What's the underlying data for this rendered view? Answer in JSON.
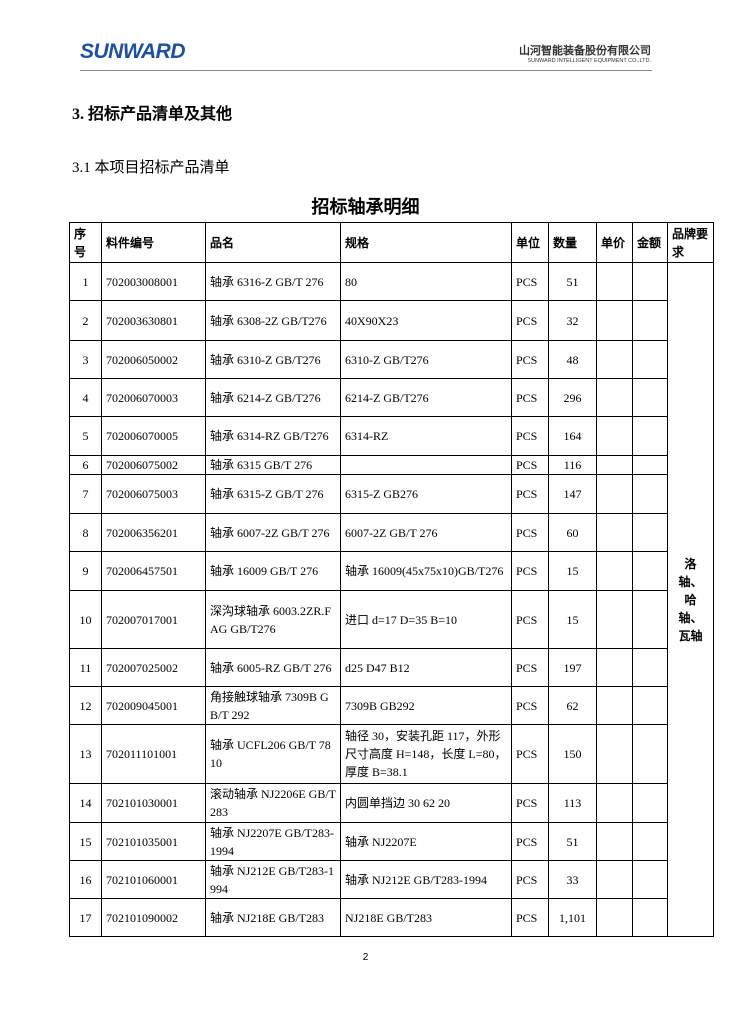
{
  "header": {
    "logo": "SUNWARD",
    "company_cn": "山河智能装备股份有限公司",
    "company_en": "SUNWARD INTELLIGENT EQUIPMENT CO.,LTD."
  },
  "section_heading": "3.  招标产品清单及其他",
  "subsection_heading": "3.1  本项目招标产品清单",
  "table": {
    "title": "招标轴承明细",
    "columns": [
      "序号",
      "料件编号",
      "品名",
      "规格",
      "单位",
      "数量",
      "单价",
      "金额",
      "品牌要求"
    ],
    "brand": [
      "洛",
      "轴、",
      "哈",
      "轴、",
      "瓦轴"
    ],
    "rows": [
      {
        "no": "1",
        "code": "702003008001",
        "name": "轴承 6316-Z GB/T 276",
        "spec": "80",
        "unit": "PCS",
        "qty": "51"
      },
      {
        "no": "2",
        "code": "702003630801",
        "name": "轴承 6308-2Z GB/T276",
        "spec": "40X90X23",
        "unit": "PCS",
        "qty": "32"
      },
      {
        "no": "3",
        "code": "702006050002",
        "name": "轴承 6310-Z GB/T276",
        "spec": "6310-Z GB/T276",
        "unit": "PCS",
        "qty": "48"
      },
      {
        "no": "4",
        "code": "702006070003",
        "name": "轴承 6214-Z GB/T276",
        "spec": "6214-Z GB/T276",
        "unit": "PCS",
        "qty": "296"
      },
      {
        "no": "5",
        "code": "702006070005",
        "name": "轴承 6314-RZ GB/T276",
        "spec": "6314-RZ",
        "unit": "PCS",
        "qty": "164"
      },
      {
        "no": "6",
        "code": "702006075002",
        "name": "轴承 6315 GB/T 276",
        "unit": "PCS",
        "qty": "116"
      },
      {
        "no": "7",
        "code": "702006075003",
        "name": "轴承 6315-Z GB/T 276",
        "spec": "6315-Z GB276",
        "unit": "PCS",
        "qty": "147"
      },
      {
        "no": "8",
        "code": "702006356201",
        "name": "轴承 6007-2Z GB/T 276",
        "spec": "6007-2Z GB/T 276",
        "unit": "PCS",
        "qty": "60"
      },
      {
        "no": "9",
        "code": "702006457501",
        "name": "轴承 16009 GB/T 276",
        "spec": "轴承 16009(45x75x10)GB/T276",
        "unit": "PCS",
        "qty": "15"
      },
      {
        "no": "10",
        "code": "702007017001",
        "name": "深沟球轴承 6003.2ZR.FAG GB/T276",
        "spec": "进口  d=17 D=35 B=10",
        "unit": "PCS",
        "qty": "15"
      },
      {
        "no": "11",
        "code": "702007025002",
        "name": "轴承 6005-RZ GB/T 276",
        "spec": "d25 D47 B12",
        "unit": "PCS",
        "qty": "197"
      },
      {
        "no": "12",
        "code": "702009045001",
        "name": "角接触球轴承 7309B GB/T 292",
        "spec": "7309B GB292",
        "unit": "PCS",
        "qty": "62"
      },
      {
        "no": "13",
        "code": "702011101001",
        "name": "轴承 UCFL206 GB/T 7810",
        "spec": "轴径 30，安装孔距 117，外形尺寸高度 H=148，长度 L=80，厚度 B=38.1",
        "unit": "PCS",
        "qty": "150"
      },
      {
        "no": "14",
        "code": "702101030001",
        "name": "滚动轴承 NJ2206E GB/T283",
        "spec": "内圆单挡边 30 62 20",
        "unit": "PCS",
        "qty": "113"
      },
      {
        "no": "15",
        "code": "702101035001",
        "name": "轴承 NJ2207E GB/T283-1994",
        "spec": "轴承 NJ2207E",
        "unit": "PCS",
        "qty": "51"
      },
      {
        "no": "16",
        "code": "702101060001",
        "name": "轴承 NJ212E GB/T283-1994",
        "spec": "轴承 NJ212E GB/T283-1994",
        "unit": "PCS",
        "qty": "33"
      },
      {
        "no": "17",
        "code": "702101090002",
        "name": "轴承 NJ218E GB/T283",
        "spec": "NJ218E GB/T283",
        "unit": "PCS",
        "qty": "1,101"
      }
    ]
  },
  "page_number": "2"
}
